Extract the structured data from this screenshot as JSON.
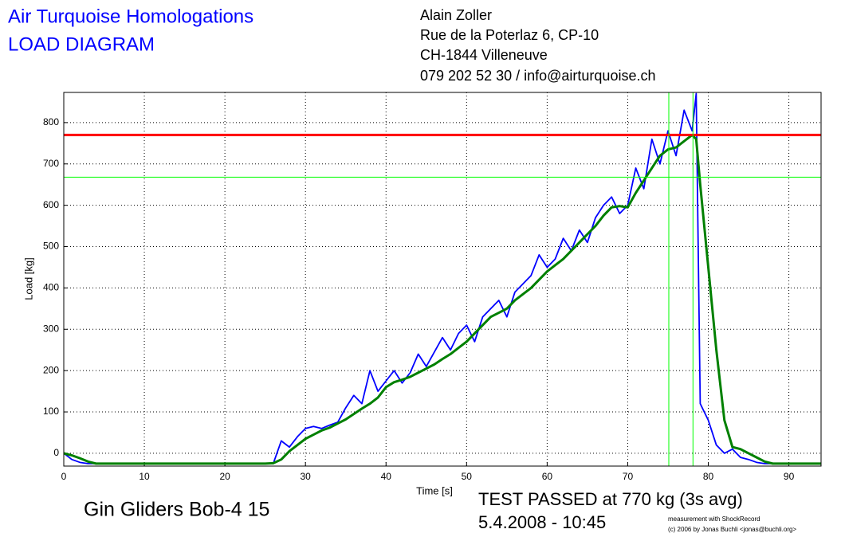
{
  "header": {
    "title_lines": [
      "Air Turquoise Homologations",
      "LOAD DIAGRAM"
    ],
    "address_lines": [
      "Alain Zoller",
      "Rue de la Poterlaz 6, CP-10",
      "CH-1844 Villeneuve",
      "079 202 52 30 / info@airturquoise.ch"
    ]
  },
  "footer": {
    "glider": "Gin Gliders Bob-4 15",
    "result": "TEST PASSED at 770 kg (3s avg)",
    "date": "5.4.2008 - 10:45",
    "credit_lines": [
      "measurement with ShockRecord",
      "(c) 2006 by Jonas Buchli <jonas@buchli.org>"
    ]
  },
  "chart_data": {
    "type": "line",
    "x_label": "Time [s]",
    "y_label": "Load [kg]",
    "xlim": [
      0,
      94
    ],
    "ylim": [
      -31,
      873
    ],
    "xticks": [
      0,
      10,
      20,
      30,
      40,
      50,
      60,
      70,
      80,
      90
    ],
    "yticks": [
      0,
      100,
      200,
      300,
      400,
      500,
      600,
      700,
      800
    ],
    "grid": true,
    "x": [
      0,
      1,
      2,
      3,
      4,
      5,
      6,
      7,
      8,
      9,
      10,
      11,
      12,
      13,
      14,
      15,
      16,
      17,
      18,
      19,
      20,
      21,
      22,
      23,
      24,
      25,
      26,
      27,
      28,
      29,
      30,
      31,
      32,
      33,
      34,
      35,
      36,
      37,
      38,
      39,
      40,
      41,
      42,
      43,
      44,
      45,
      46,
      47,
      48,
      49,
      50,
      51,
      52,
      53,
      54,
      55,
      56,
      57,
      58,
      59,
      60,
      61,
      62,
      63,
      64,
      65,
      66,
      67,
      68,
      69,
      70,
      71,
      72,
      73,
      74,
      75,
      76,
      77,
      78,
      78.5,
      79,
      80,
      81,
      82,
      83,
      84,
      85,
      86,
      87,
      88,
      89,
      90,
      91,
      92,
      93,
      94
    ],
    "series": [
      {
        "color": "#0000ff",
        "values": [
          0,
          -15,
          -22,
          -25,
          -25,
          -25,
          -25,
          -25,
          -25,
          -25,
          -25,
          -25,
          -25,
          -25,
          -25,
          -25,
          -25,
          -25,
          -25,
          -25,
          -25,
          -25,
          -25,
          -25,
          -25,
          -25,
          -25,
          30,
          15,
          40,
          60,
          65,
          60,
          68,
          75,
          110,
          140,
          120,
          200,
          150,
          175,
          200,
          170,
          195,
          240,
          210,
          245,
          280,
          250,
          290,
          310,
          270,
          330,
          350,
          370,
          330,
          390,
          410,
          430,
          480,
          450,
          470,
          520,
          490,
          540,
          510,
          570,
          600,
          620,
          580,
          600,
          690,
          640,
          760,
          700,
          780,
          720,
          830,
          780,
          870,
          120,
          80,
          20,
          0,
          10,
          -10,
          -15,
          -22,
          -25,
          -25,
          -25,
          -25,
          -25,
          -25,
          -25,
          -25
        ]
      },
      {
        "color": "#008000",
        "values": [
          0,
          -5,
          -12,
          -20,
          -25,
          -25,
          -25,
          -25,
          -25,
          -25,
          -25,
          -25,
          -25,
          -25,
          -25,
          -25,
          -25,
          -25,
          -25,
          -25,
          -25,
          -25,
          -25,
          -25,
          -25,
          -25,
          -24,
          -15,
          5,
          20,
          35,
          45,
          55,
          62,
          72,
          82,
          95,
          108,
          120,
          135,
          160,
          172,
          178,
          185,
          195,
          205,
          215,
          228,
          240,
          255,
          270,
          290,
          310,
          330,
          340,
          350,
          370,
          385,
          400,
          420,
          440,
          455,
          470,
          490,
          510,
          530,
          550,
          575,
          595,
          598,
          595,
          630,
          660,
          690,
          720,
          735,
          740,
          755,
          770,
          760,
          650,
          450,
          250,
          80,
          15,
          10,
          0,
          -10,
          -20,
          -25,
          -25,
          -25,
          -25,
          -25,
          -25,
          -25
        ]
      }
    ],
    "h_lines": [
      {
        "value": 770,
        "color": "#ff0000"
      },
      {
        "value": 668,
        "color": "#00ff00"
      }
    ],
    "v_lines": [
      {
        "value": 75.1,
        "color": "#00ff00"
      },
      {
        "value": 78.1,
        "color": "#00ff00"
      }
    ]
  }
}
